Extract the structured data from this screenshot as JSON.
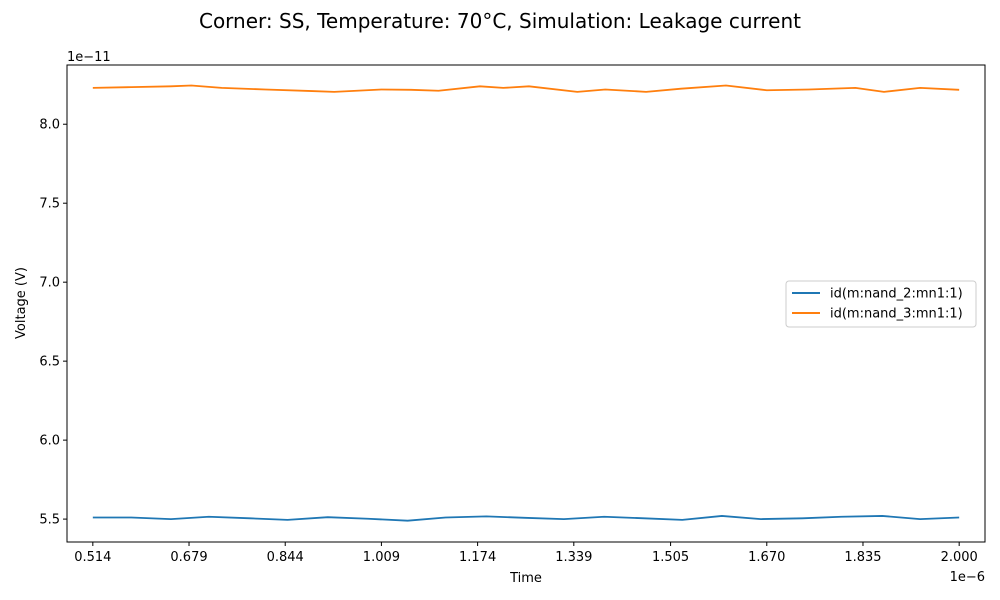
{
  "chart_data": {
    "type": "line",
    "title": "Corner: SS, Temperature: 70°C, Simulation: Leakage current",
    "xlabel": "Time",
    "ylabel": "Voltage (V)",
    "x_offset_text": "1e−6",
    "y_offset_text": "1e−11",
    "xlim": [
      0.4697,
      2.0443
    ],
    "ylim": [
      5.355,
      8.375
    ],
    "x_ticks": [
      0.514,
      0.679,
      0.844,
      1.009,
      1.174,
      1.339,
      1.505,
      1.67,
      1.835,
      2.0
    ],
    "x_tick_labels": [
      "0.514",
      "0.679",
      "0.844",
      "1.009",
      "1.174",
      "1.339",
      "1.505",
      "1.670",
      "1.835",
      "2.000"
    ],
    "y_ticks": [
      5.5,
      6.0,
      6.5,
      7.0,
      7.5,
      8.0
    ],
    "y_tick_labels": [
      "5.5",
      "6.0",
      "6.5",
      "7.0",
      "7.5",
      "8.0"
    ],
    "grid": false,
    "legend_position": "center-right",
    "series": [
      {
        "name": "id(m:nand_2:mn1:1)",
        "color": "#1f77b4",
        "x": [
          0.514,
          0.58,
          0.648,
          0.713,
          0.784,
          0.848,
          0.917,
          0.986,
          1.054,
          1.119,
          1.189,
          1.255,
          1.322,
          1.391,
          1.46,
          1.525,
          1.593,
          1.66,
          1.731,
          1.798,
          1.868,
          1.933,
          2.0
        ],
        "y": [
          5.51,
          5.51,
          5.5,
          5.515,
          5.505,
          5.495,
          5.512,
          5.502,
          5.49,
          5.51,
          5.517,
          5.508,
          5.5,
          5.515,
          5.505,
          5.495,
          5.52,
          5.5,
          5.505,
          5.515,
          5.52,
          5.5,
          5.51
        ]
      },
      {
        "name": "id(m:nand_3:mn1:1)",
        "color": "#ff7f0e",
        "x": [
          0.514,
          0.58,
          0.648,
          0.683,
          0.735,
          0.81,
          0.89,
          0.928,
          1.009,
          1.06,
          1.107,
          1.178,
          1.218,
          1.262,
          1.345,
          1.393,
          1.463,
          1.523,
          1.6,
          1.67,
          1.742,
          1.822,
          1.871,
          1.933,
          2.0
        ],
        "y": [
          8.23,
          8.235,
          8.24,
          8.245,
          8.23,
          8.22,
          8.21,
          8.205,
          8.22,
          8.218,
          8.212,
          8.24,
          8.23,
          8.24,
          8.205,
          8.22,
          8.205,
          8.225,
          8.245,
          8.215,
          8.22,
          8.23,
          8.205,
          8.23,
          8.218
        ]
      }
    ]
  }
}
